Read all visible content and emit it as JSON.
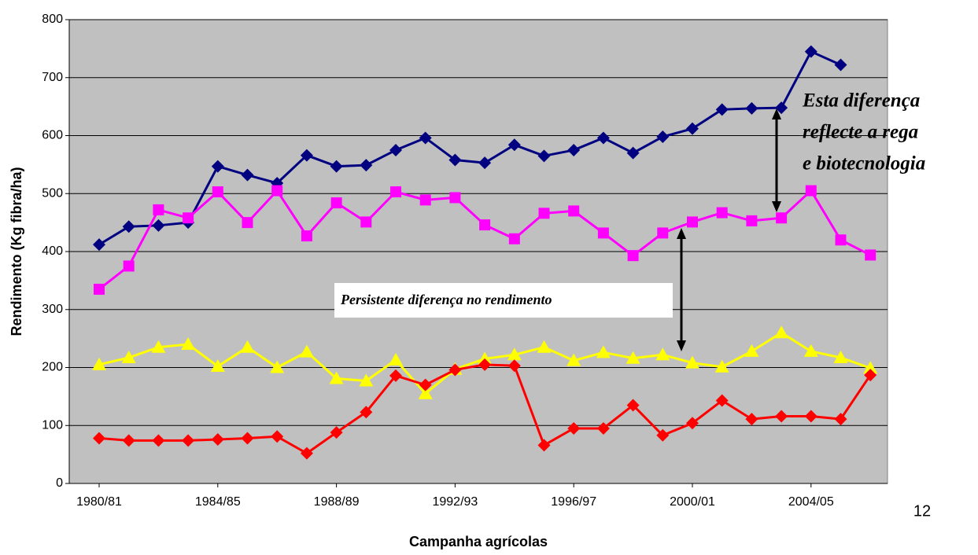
{
  "chart_data": {
    "type": "line",
    "x_label": "Campanha agrícolas",
    "y_label": "Rendimento (Kg fibra/ha)",
    "categories": [
      "1980/81",
      null,
      null,
      null,
      "1984/85",
      null,
      null,
      null,
      "1988/89",
      null,
      null,
      null,
      "1992/93",
      null,
      null,
      null,
      "1996/97",
      null,
      null,
      null,
      "2000/01",
      null,
      null,
      null,
      "2004/05",
      null,
      null
    ],
    "series": [
      {
        "color": "#000080",
        "marker": "diamond",
        "values": [
          412,
          443,
          445,
          450,
          547,
          532,
          518,
          566,
          547,
          549,
          575,
          596,
          558,
          553,
          584,
          565,
          575,
          596,
          570,
          598,
          612,
          645,
          647,
          648,
          745,
          722,
          null
        ]
      },
      {
        "color": "#ff00ff",
        "marker": "square",
        "values": [
          335,
          375,
          472,
          458,
          503,
          450,
          505,
          427,
          484,
          451,
          503,
          489,
          493,
          446,
          422,
          466,
          470,
          432,
          393,
          432,
          451,
          467,
          453,
          458,
          505,
          420,
          394
        ]
      },
      {
        "color": "#ffff00",
        "marker": "triangle",
        "values": [
          205,
          217,
          235,
          240,
          202,
          235,
          200,
          227,
          181,
          177,
          213,
          155,
          197,
          215,
          222,
          235,
          212,
          226,
          216,
          222,
          208,
          201,
          228,
          260,
          228,
          217,
          199
        ]
      },
      {
        "color": "#ff0000",
        "marker": "diamond",
        "values": [
          78,
          74,
          74,
          74,
          76,
          78,
          81,
          52,
          88,
          123,
          186,
          170,
          196,
          205,
          203,
          66,
          95,
          95,
          135,
          83,
          104,
          143,
          111,
          116,
          116,
          111,
          187
        ]
      }
    ],
    "ylim": [
      0,
      800
    ],
    "yticks": [
      0,
      100,
      200,
      300,
      400,
      500,
      600,
      700,
      800
    ],
    "grid": true,
    "annotations": [
      {
        "lines": [
          "Esta diferença",
          "reflecte a rega",
          "e biotecnologia"
        ]
      },
      {
        "lines": [
          "Persistente diferença no rendimento"
        ]
      }
    ],
    "page_number": "12"
  }
}
